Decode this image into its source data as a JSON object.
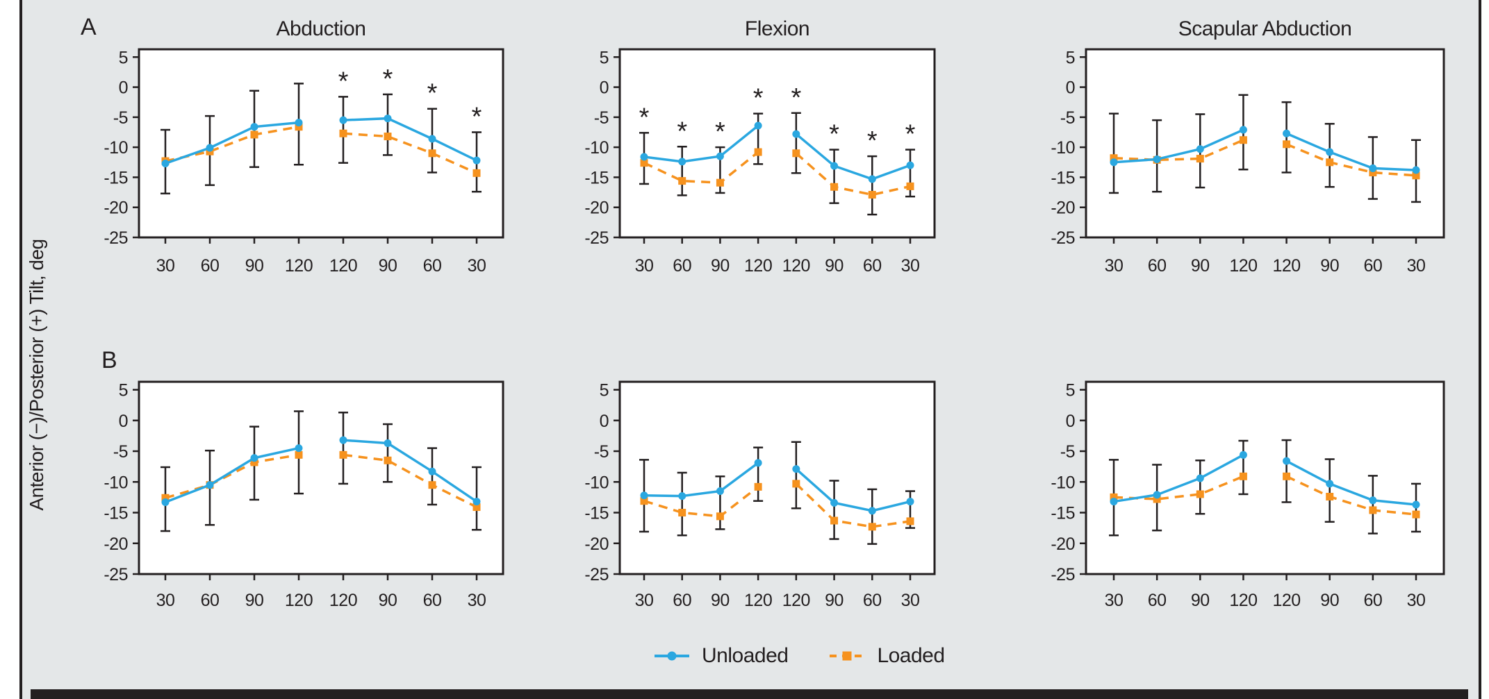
{
  "figure": {
    "panel_labels": [
      "A",
      "B"
    ],
    "y_axis_label": "Anterior (−)/Posterior (+) Tilt, deg",
    "legend": [
      {
        "label": "Unloaded",
        "color": "#2aa7e0",
        "line_style": "solid",
        "marker": "circle"
      },
      {
        "label": "Loaded",
        "color": "#f6921e",
        "line_style": "dashed",
        "marker": "square"
      }
    ],
    "colors": {
      "background": "#e4e7e8",
      "plot_fill": "#ffffff",
      "ink": "#231f20",
      "unloaded": "#2aa7e0",
      "loaded": "#f6921e"
    }
  },
  "chart_data": [
    {
      "type": "line",
      "row": "A",
      "col": 0,
      "title": "Abduction",
      "categories": [
        "30",
        "60",
        "90",
        "120",
        "120",
        "90",
        "60",
        "30"
      ],
      "yticks": [
        5,
        0,
        -5,
        -10,
        -15,
        -20,
        -25
      ],
      "ylim": [
        -25,
        5
      ],
      "line_break_after_index": 3,
      "series": [
        {
          "name": "Unloaded",
          "values": [
            -12.7,
            -10.1,
            -6.6,
            -5.9,
            -5.5,
            -5.2,
            -8.6,
            -12.2
          ]
        },
        {
          "name": "Loaded",
          "values": [
            -12.3,
            -10.7,
            -7.9,
            -6.6,
            -7.7,
            -8.2,
            -11.0,
            -14.3
          ]
        }
      ],
      "error_lo": [
        -17.7,
        -16.3,
        -13.3,
        -12.9,
        -12.6,
        -11.3,
        -14.2,
        -17.4
      ],
      "error_hi": [
        -7.1,
        -4.8,
        -0.6,
        0.6,
        -1.6,
        -1.2,
        -3.6,
        -7.5
      ],
      "significant": [
        false,
        false,
        false,
        false,
        true,
        true,
        true,
        true
      ]
    },
    {
      "type": "line",
      "row": "A",
      "col": 1,
      "title": "Flexion",
      "categories": [
        "30",
        "60",
        "90",
        "120",
        "120",
        "90",
        "60",
        "30"
      ],
      "yticks": [
        5,
        0,
        -5,
        -10,
        -15,
        -20,
        -25
      ],
      "ylim": [
        -25,
        5
      ],
      "line_break_after_index": 3,
      "series": [
        {
          "name": "Unloaded",
          "values": [
            -11.6,
            -12.4,
            -11.5,
            -6.4,
            -7.8,
            -13.1,
            -15.3,
            -13.0
          ]
        },
        {
          "name": "Loaded",
          "values": [
            -12.6,
            -15.6,
            -15.9,
            -10.8,
            -11.0,
            -16.6,
            -17.9,
            -16.5
          ]
        }
      ],
      "error_lo": [
        -16.1,
        -18.0,
        -17.6,
        -12.8,
        -14.3,
        -19.3,
        -21.2,
        -18.2
      ],
      "error_hi": [
        -7.6,
        -9.9,
        -10.0,
        -4.4,
        -4.3,
        -10.4,
        -11.5,
        -10.4
      ],
      "significant": [
        true,
        true,
        true,
        true,
        true,
        true,
        true,
        true
      ]
    },
    {
      "type": "line",
      "row": "A",
      "col": 2,
      "title": "Scapular Abduction",
      "categories": [
        "30",
        "60",
        "90",
        "120",
        "120",
        "90",
        "60",
        "30"
      ],
      "yticks": [
        5,
        0,
        -5,
        -10,
        -15,
        -20,
        -25
      ],
      "ylim": [
        -25,
        5
      ],
      "line_break_after_index": 3,
      "series": [
        {
          "name": "Unloaded",
          "values": [
            -12.5,
            -12.0,
            -10.3,
            -7.1,
            -7.7,
            -10.8,
            -13.5,
            -13.8
          ]
        },
        {
          "name": "Loaded",
          "values": [
            -11.8,
            -12.1,
            -11.9,
            -8.8,
            -9.5,
            -12.5,
            -14.2,
            -14.7
          ]
        }
      ],
      "error_lo": [
        -17.6,
        -17.4,
        -16.7,
        -13.7,
        -14.2,
        -16.6,
        -18.6,
        -19.1
      ],
      "error_hi": [
        -4.4,
        -5.5,
        -4.5,
        -1.3,
        -2.5,
        -6.1,
        -8.3,
        -8.8
      ],
      "significant": [
        false,
        false,
        false,
        false,
        false,
        false,
        false,
        false
      ]
    },
    {
      "type": "line",
      "row": "B",
      "col": 0,
      "title": "",
      "categories": [
        "30",
        "60",
        "90",
        "120",
        "120",
        "90",
        "60",
        "30"
      ],
      "yticks": [
        5,
        0,
        -5,
        -10,
        -15,
        -20,
        -25
      ],
      "ylim": [
        -25,
        5
      ],
      "line_break_after_index": 3,
      "series": [
        {
          "name": "Unloaded",
          "values": [
            -13.3,
            -10.5,
            -6.1,
            -4.5,
            -3.2,
            -3.7,
            -8.3,
            -13.2
          ]
        },
        {
          "name": "Loaded",
          "values": [
            -12.6,
            -10.5,
            -6.8,
            -5.6,
            -5.6,
            -6.5,
            -10.5,
            -14.1
          ]
        }
      ],
      "error_lo": [
        -18.0,
        -17.0,
        -12.9,
        -11.9,
        -10.3,
        -10.0,
        -13.7,
        -17.8
      ],
      "error_hi": [
        -7.6,
        -4.9,
        -1.0,
        1.5,
        1.3,
        -0.6,
        -4.5,
        -7.6
      ],
      "significant": [
        false,
        false,
        false,
        false,
        false,
        false,
        false,
        false
      ]
    },
    {
      "type": "line",
      "row": "B",
      "col": 1,
      "title": "",
      "categories": [
        "30",
        "60",
        "90",
        "120",
        "120",
        "90",
        "60",
        "30"
      ],
      "yticks": [
        5,
        0,
        -5,
        -10,
        -15,
        -20,
        -25
      ],
      "ylim": [
        -25,
        5
      ],
      "line_break_after_index": 3,
      "series": [
        {
          "name": "Unloaded",
          "values": [
            -12.2,
            -12.3,
            -11.5,
            -6.9,
            -7.9,
            -13.4,
            -14.7,
            -13.2
          ]
        },
        {
          "name": "Loaded",
          "values": [
            -13.1,
            -15.0,
            -15.6,
            -10.8,
            -10.3,
            -16.3,
            -17.3,
            -16.4
          ]
        }
      ],
      "error_lo": [
        -18.1,
        -18.7,
        -17.7,
        -13.1,
        -14.3,
        -19.3,
        -20.1,
        -17.5
      ],
      "error_hi": [
        -6.4,
        -8.5,
        -9.1,
        -4.4,
        -3.5,
        -9.8,
        -11.2,
        -11.5
      ],
      "significant": [
        false,
        false,
        false,
        false,
        false,
        false,
        false,
        false
      ]
    },
    {
      "type": "line",
      "row": "B",
      "col": 2,
      "title": "",
      "categories": [
        "30",
        "60",
        "90",
        "120",
        "120",
        "90",
        "60",
        "30"
      ],
      "yticks": [
        5,
        0,
        -5,
        -10,
        -15,
        -20,
        -25
      ],
      "ylim": [
        -25,
        5
      ],
      "line_break_after_index": 3,
      "series": [
        {
          "name": "Unloaded",
          "values": [
            -13.2,
            -12.1,
            -9.4,
            -5.6,
            -6.6,
            -10.3,
            -13.0,
            -13.7
          ]
        },
        {
          "name": "Loaded",
          "values": [
            -12.5,
            -12.8,
            -12.0,
            -9.1,
            -9.1,
            -12.4,
            -14.6,
            -15.3
          ]
        }
      ],
      "error_lo": [
        -18.7,
        -17.9,
        -15.2,
        -12.0,
        -13.3,
        -16.5,
        -18.4,
        -18.1
      ],
      "error_hi": [
        -6.4,
        -7.2,
        -6.5,
        -3.3,
        -3.2,
        -6.3,
        -9.0,
        -10.3
      ],
      "significant": [
        false,
        false,
        false,
        false,
        false,
        false,
        false,
        false
      ]
    }
  ]
}
